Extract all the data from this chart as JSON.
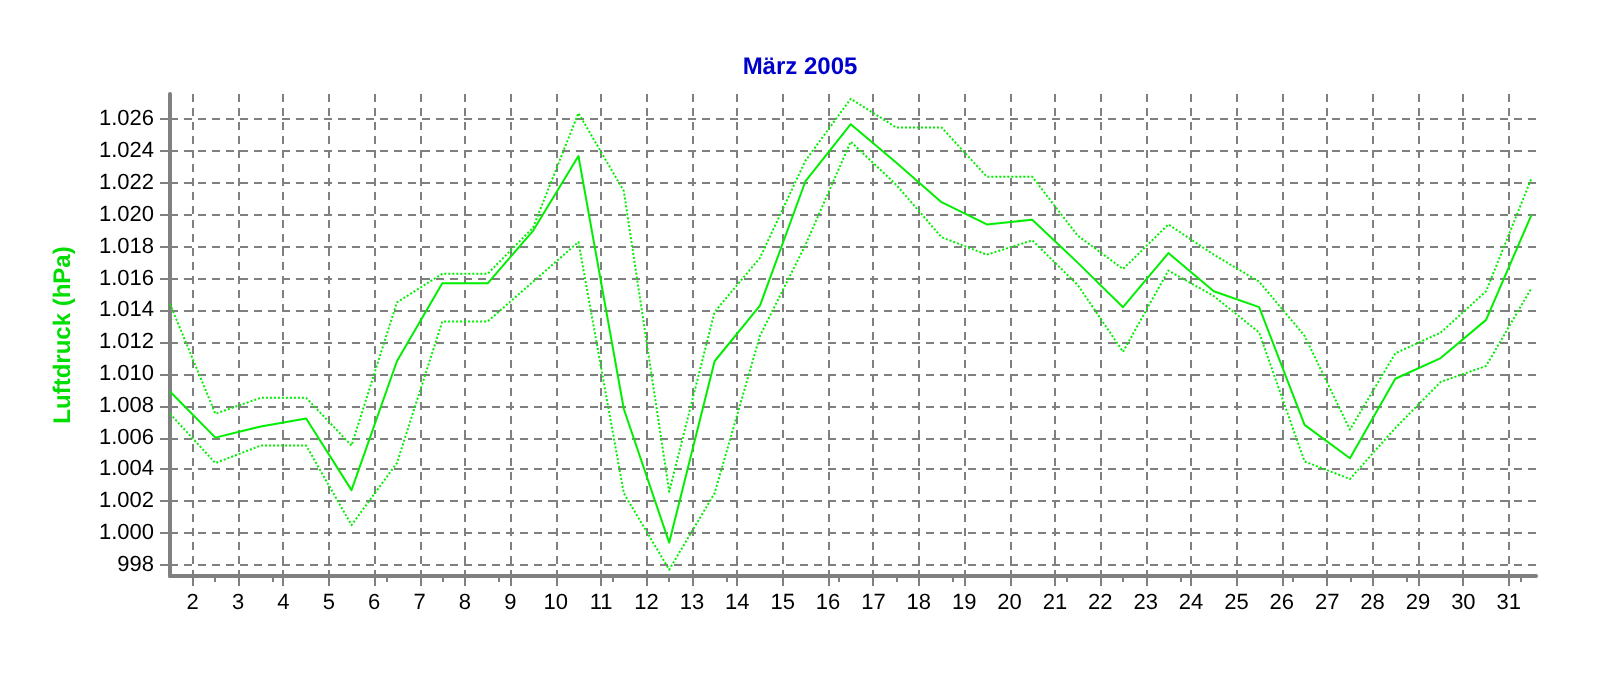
{
  "chart_data": {
    "type": "line",
    "title": "März 2005",
    "ylabel": "Luftdruck (hPa)",
    "x": [
      1.5,
      2.5,
      3.5,
      4.5,
      5.5,
      6.5,
      7.5,
      8.5,
      9.5,
      10.5,
      11.5,
      12.5,
      13.5,
      14.5,
      15.5,
      16.5,
      17.5,
      18.5,
      19.5,
      20.5,
      21.5,
      22.5,
      23.5,
      24.5,
      25.5,
      26.5,
      27.5,
      28.5,
      29.5,
      30.5,
      31.5
    ],
    "series": [
      {
        "color": "#00ee00",
        "line_style": "dotted",
        "values": [
          1014.4,
          1007.5,
          1008.5,
          1008.5,
          1005.5,
          1014.5,
          1016.3,
          1016.3,
          1019.2,
          1026.4,
          1021.5,
          1002.6,
          1013.9,
          1017.3,
          1023.4,
          1027.3,
          1025.5,
          1025.5,
          1022.4,
          1022.4,
          1018.7,
          1016.6,
          1019.4,
          1017.5,
          1015.8,
          1012.4,
          1006.5,
          1011.3,
          1012.6,
          1015.2,
          1022.3
        ]
      },
      {
        "color": "#00ee00",
        "line_style": "solid",
        "values": [
          1008.9,
          1006.0,
          1006.7,
          1007.2,
          1002.7,
          1010.8,
          1015.7,
          1015.7,
          1019.0,
          1023.7,
          1007.8,
          999.4,
          1010.8,
          1014.3,
          1022.1,
          1025.7,
          1023.3,
          1020.8,
          1019.4,
          1019.7,
          1017.0,
          1014.2,
          1017.6,
          1015.2,
          1014.2,
          1006.8,
          1004.7,
          1009.7,
          1011.0,
          1013.4,
          1020.0
        ]
      },
      {
        "color": "#00ee00",
        "line_style": "dotted",
        "values": [
          1007.5,
          1004.4,
          1005.5,
          1005.5,
          1000.5,
          1004.4,
          1013.3,
          1013.3,
          1015.8,
          1018.3,
          1002.5,
          997.7,
          1002.5,
          1012.4,
          1018.1,
          1024.6,
          1021.9,
          1018.6,
          1017.5,
          1018.4,
          1015.6,
          1011.4,
          1016.5,
          1014.9,
          1012.6,
          1004.5,
          1003.4,
          1006.6,
          1009.5,
          1010.5,
          1015.4
        ]
      }
    ],
    "xlim": [
      1.5,
      31.6
    ],
    "xticks": [
      2,
      3,
      4,
      5,
      6,
      7,
      8,
      9,
      10,
      11,
      12,
      13,
      14,
      15,
      16,
      17,
      18,
      19,
      20,
      21,
      22,
      23,
      24,
      25,
      26,
      27,
      28,
      29,
      30,
      31
    ],
    "ylim": [
      997.3,
      1027.6
    ],
    "yticks": [
      998,
      {
        "value": 1000,
        "label": "1.000"
      },
      {
        "value": 1002,
        "label": "1.002"
      },
      {
        "value": 1004,
        "label": "1.004"
      },
      {
        "value": 1006,
        "label": "1.006"
      },
      {
        "value": 1008,
        "label": "1.008"
      },
      {
        "value": 1010,
        "label": "1.010"
      },
      {
        "value": 1012,
        "label": "1.012"
      },
      {
        "value": 1014,
        "label": "1.014"
      },
      {
        "value": 1016,
        "label": "1.016"
      },
      {
        "value": 1018,
        "label": "1.018"
      },
      {
        "value": 1020,
        "label": "1.020"
      },
      {
        "value": 1022,
        "label": "1.022"
      },
      {
        "value": 1024,
        "label": "1.024"
      },
      {
        "value": 1026,
        "label": "1.026"
      }
    ],
    "grid": true,
    "marker": "none"
  }
}
